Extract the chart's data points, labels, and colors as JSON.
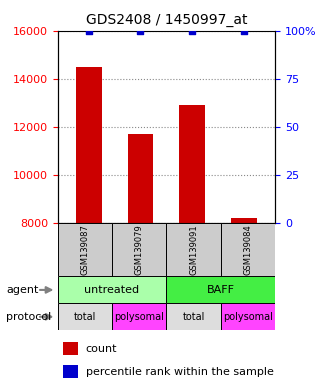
{
  "title": "GDS2408 / 1450997_at",
  "samples": [
    "GSM139087",
    "GSM139079",
    "GSM139091",
    "GSM139084"
  ],
  "bar_values": [
    14500,
    11700,
    12900,
    8200
  ],
  "percentile_values": [
    100,
    100,
    100,
    100
  ],
  "ylim_left": [
    8000,
    16000
  ],
  "ylim_right": [
    0,
    100
  ],
  "yticks_left": [
    8000,
    10000,
    12000,
    14000,
    16000
  ],
  "yticks_right": [
    0,
    25,
    50,
    75,
    100
  ],
  "bar_color": "#cc0000",
  "percentile_color": "#0000cc",
  "bar_width": 0.5,
  "agent_colors": [
    "#aaffaa",
    "#44ee44"
  ],
  "protocol_labels": [
    "total",
    "polysomal",
    "total",
    "polysomal"
  ],
  "protocol_colors": [
    "#dddddd",
    "#ff44ff",
    "#dddddd",
    "#ff44ff"
  ],
  "sample_box_color": "#cccccc",
  "legend_count_color": "#cc0000",
  "legend_pct_color": "#0000cc",
  "background_color": "#ffffff",
  "grid_color": "#888888"
}
